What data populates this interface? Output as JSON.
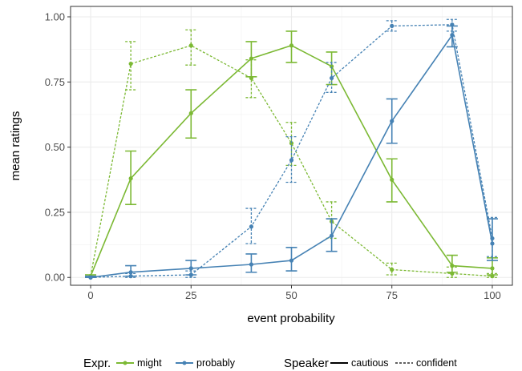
{
  "chart_data": {
    "type": "line",
    "xlabel": "event probability",
    "ylabel": "mean ratings",
    "x": [
      0,
      10,
      25,
      40,
      50,
      60,
      75,
      90,
      100
    ],
    "xlim": [
      -5,
      105
    ],
    "ylim": [
      -0.03,
      1.04
    ],
    "x_ticks": [
      0,
      25,
      50,
      75,
      100
    ],
    "y_ticks": [
      0.0,
      0.25,
      0.5,
      0.75,
      1.0
    ],
    "x_tick_labels": [
      "0",
      "25",
      "50",
      "75",
      "100"
    ],
    "y_tick_labels": [
      "0.00",
      "0.25",
      "0.50",
      "0.75",
      "1.00"
    ],
    "grid": true,
    "legend_position": "bottom",
    "series": [
      {
        "expr": "might",
        "speaker": "cautious",
        "color": "#7cb934",
        "dash": "solid",
        "values": [
          0.005,
          0.38,
          0.63,
          0.84,
          0.89,
          0.81,
          0.375,
          0.045,
          0.035
        ],
        "err_low": [
          0.0,
          0.28,
          0.535,
          0.77,
          0.825,
          0.74,
          0.29,
          0.02,
          0.01
        ],
        "err_high": [
          0.01,
          0.485,
          0.72,
          0.905,
          0.945,
          0.865,
          0.455,
          0.085,
          0.075
        ]
      },
      {
        "expr": "might",
        "speaker": "confident",
        "color": "#7cb934",
        "dash": "dashed",
        "values": [
          0.005,
          0.82,
          0.89,
          0.765,
          0.515,
          0.215,
          0.03,
          0.015,
          0.005
        ],
        "err_low": [
          0.0,
          0.72,
          0.815,
          0.69,
          0.43,
          0.15,
          0.01,
          0.0,
          0.0
        ],
        "err_high": [
          0.01,
          0.905,
          0.95,
          0.835,
          0.595,
          0.29,
          0.055,
          0.04,
          0.015
        ]
      },
      {
        "expr": "probably",
        "speaker": "cautious",
        "color": "#4682b4",
        "dash": "solid",
        "values": [
          0.0,
          0.02,
          0.035,
          0.05,
          0.065,
          0.16,
          0.6,
          0.93,
          0.13
        ],
        "err_low": [
          0.0,
          0.005,
          0.01,
          0.02,
          0.025,
          0.1,
          0.515,
          0.885,
          0.065
        ],
        "err_high": [
          0.005,
          0.045,
          0.065,
          0.09,
          0.115,
          0.225,
          0.685,
          0.965,
          0.225
        ]
      },
      {
        "expr": "probably",
        "speaker": "confident",
        "color": "#4682b4",
        "dash": "dashed",
        "values": [
          0.0,
          0.005,
          0.01,
          0.195,
          0.45,
          0.765,
          0.965,
          0.97,
          0.15
        ],
        "err_low": [
          0.0,
          0.0,
          0.0,
          0.13,
          0.365,
          0.71,
          0.945,
          0.945,
          0.08
        ],
        "err_high": [
          0.005,
          0.015,
          0.025,
          0.265,
          0.54,
          0.825,
          0.985,
          0.99,
          0.23
        ]
      }
    ],
    "legend": {
      "expr_title": "Expr.",
      "expr_items": [
        {
          "label": "might",
          "color": "#7cb934"
        },
        {
          "label": "probably",
          "color": "#4682b4"
        }
      ],
      "speaker_title": "Speaker",
      "speaker_items": [
        {
          "label": "cautious",
          "dash": "solid"
        },
        {
          "label": "confident",
          "dash": "dashed"
        }
      ]
    }
  }
}
